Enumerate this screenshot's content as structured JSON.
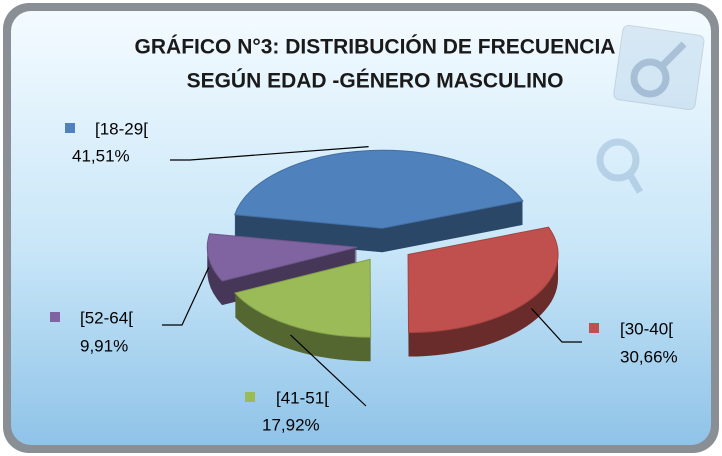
{
  "chart_data": {
    "type": "pie",
    "title": [
      "GRÁFICO N°3: DISTRIBUCIÓN DE FRECUENCIA",
      "SEGÚN EDAD -GÉNERO MASCULINO"
    ],
    "categories": [
      "[18-29[",
      "[30-40[",
      "[41-51[",
      "[52-64["
    ],
    "values": [
      41.51,
      30.66,
      17.92,
      9.91
    ],
    "value_labels": [
      "41,51%",
      "30,66%",
      "17,92%",
      "9,91%"
    ],
    "colors": [
      "#4f81bd",
      "#c0504d",
      "#9bbb59",
      "#8064a2"
    ]
  }
}
